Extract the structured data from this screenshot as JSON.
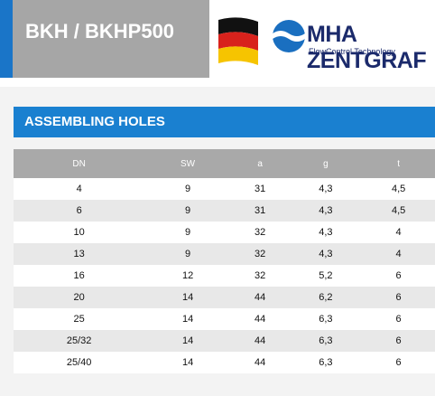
{
  "header": {
    "title": "BKH / BKHP500",
    "brand": "MHA ZENTGRAF",
    "tagline": "FlowControl Technology"
  },
  "section": {
    "title": "ASSEMBLING HOLES"
  },
  "table": {
    "columns": [
      "DN",
      "SW",
      "a",
      "g",
      "t"
    ],
    "rows": [
      [
        "4",
        "9",
        "31",
        "4,3",
        "4,5"
      ],
      [
        "6",
        "9",
        "31",
        "4,3",
        "4,5"
      ],
      [
        "10",
        "9",
        "32",
        "4,3",
        "4"
      ],
      [
        "13",
        "9",
        "32",
        "4,3",
        "4"
      ],
      [
        "16",
        "12",
        "32",
        "5,2",
        "6"
      ],
      [
        "20",
        "14",
        "44",
        "6,2",
        "6"
      ],
      [
        "25",
        "14",
        "44",
        "6,3",
        "6"
      ],
      [
        "25/32",
        "14",
        "44",
        "6,3",
        "6"
      ],
      [
        "25/40",
        "14",
        "44",
        "6,3",
        "6"
      ]
    ]
  }
}
